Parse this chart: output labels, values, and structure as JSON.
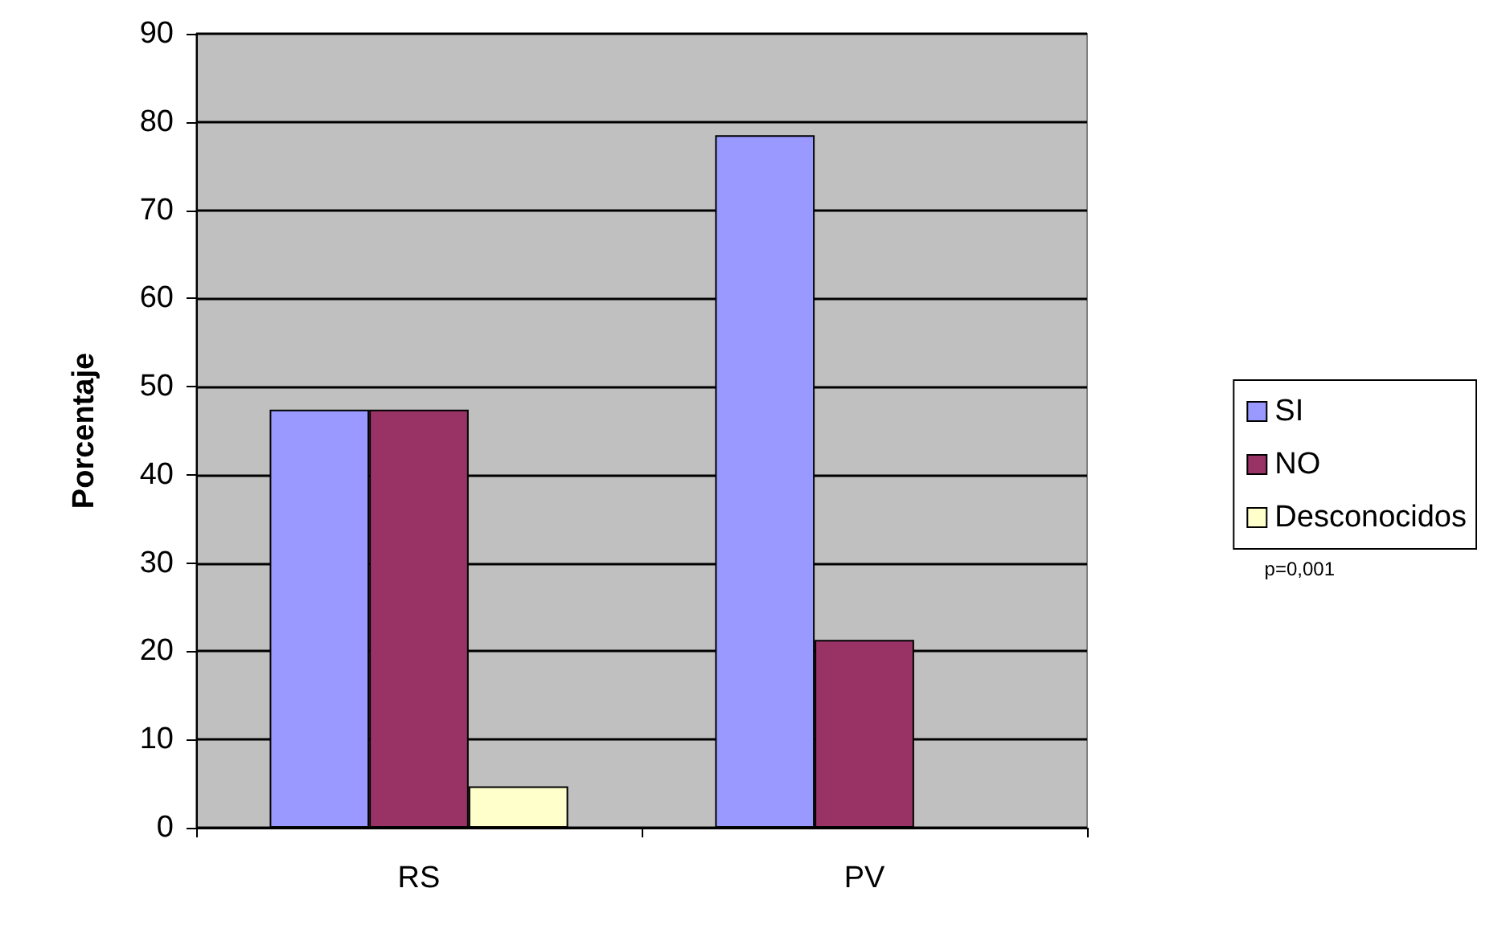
{
  "chart_data": {
    "type": "bar",
    "ylabel": "Porcentaje",
    "categories": [
      "RS",
      "PV"
    ],
    "series": [
      {
        "name": "SI",
        "color": "#9999ff",
        "values": [
          47.4,
          78.5
        ]
      },
      {
        "name": "NO",
        "color": "#993366",
        "values": [
          47.4,
          21.3
        ]
      },
      {
        "name": "Desconocidos",
        "color": "#ffffcc",
        "values": [
          4.7,
          null
        ]
      }
    ],
    "ylim": [
      0,
      90
    ],
    "yticks": [
      0,
      10,
      20,
      30,
      40,
      50,
      60,
      70,
      80,
      90
    ],
    "grid": "y",
    "legend": "right",
    "annotations": [
      "p=0,001"
    ]
  }
}
